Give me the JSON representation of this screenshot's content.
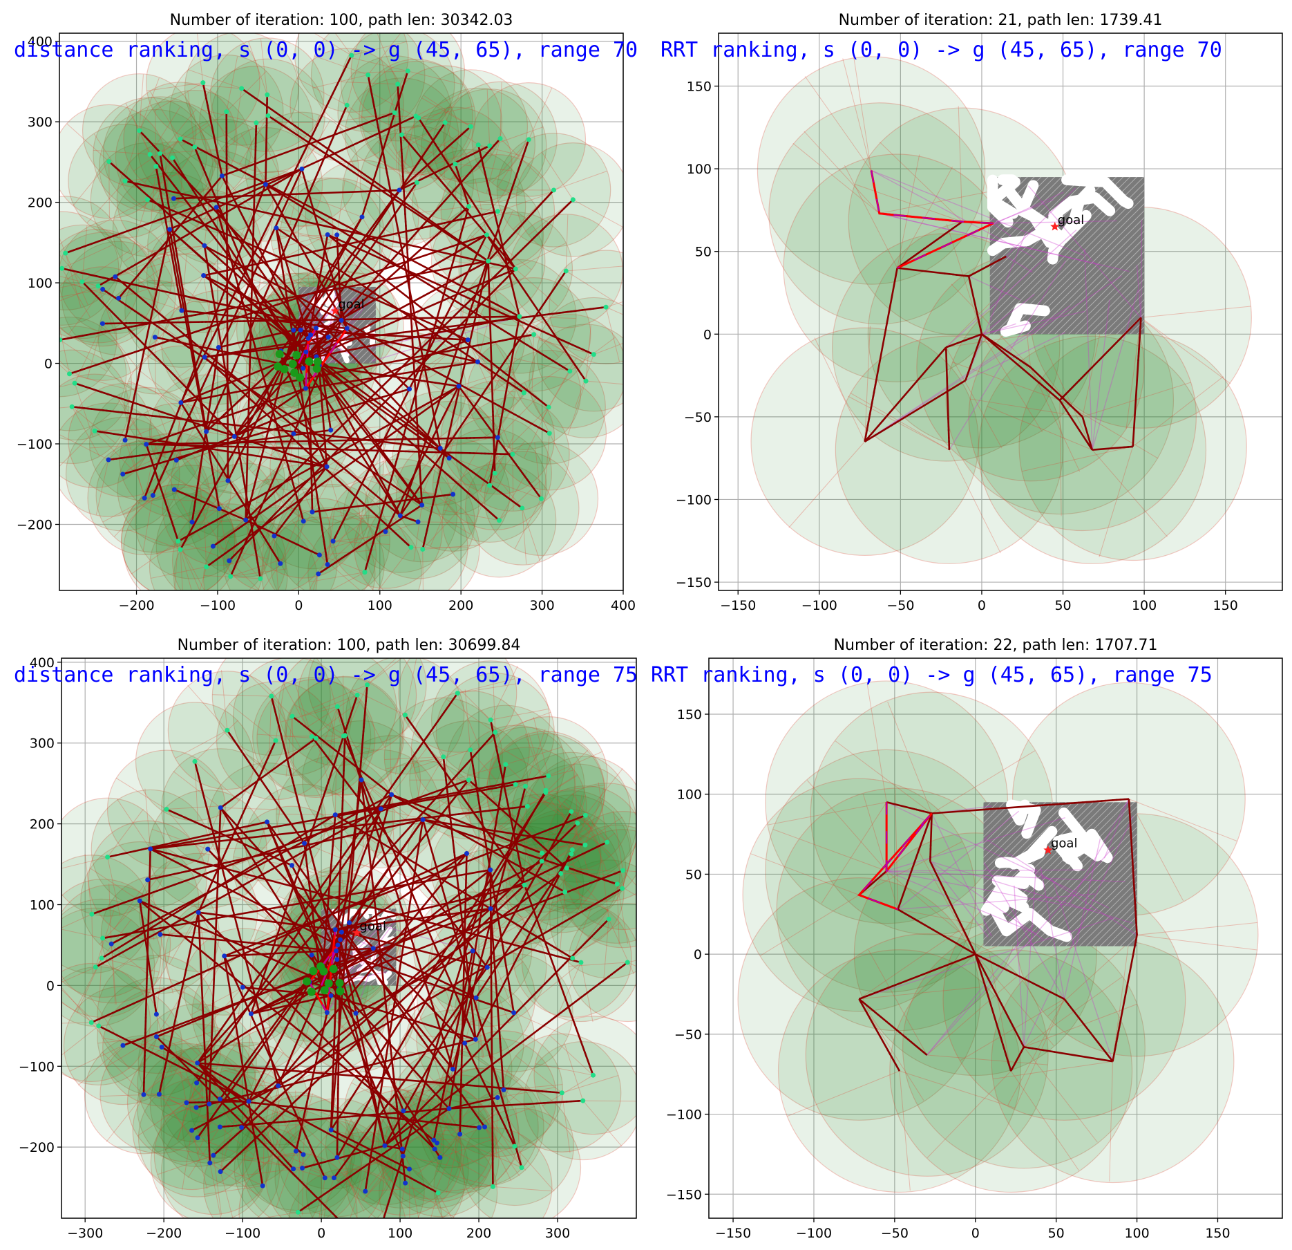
{
  "chart_data": [
    {
      "type": "scatter",
      "title": "Number of iteration: 100, path len: 30342.03",
      "annotation": "distance ranking, s (0, 0) -> g (45, 65), range 70",
      "xlim": [
        -295,
        400
      ],
      "ylim": [
        -282,
        410
      ],
      "xticks": [
        -200,
        -100,
        0,
        100,
        200,
        300,
        400
      ],
      "yticks": [
        -200,
        -100,
        0,
        100,
        200,
        300,
        400
      ],
      "grid": true,
      "start": [
        0,
        0
      ],
      "goal": [
        45,
        65
      ],
      "goal_label": "goal",
      "maze_extent": [
        0,
        95,
        0,
        95
      ],
      "tree_seed": 11,
      "tree_nodes": 150,
      "hub_radius": 50,
      "spread": 330
    },
    {
      "type": "scatter",
      "title": "Number of iteration: 21, path len: 1739.41",
      "annotation": "RRT ranking, s (0, 0) -> g (45, 65), range 70",
      "xlim": [
        -162,
        185
      ],
      "ylim": [
        -155,
        182
      ],
      "xticks": [
        -150,
        -100,
        -50,
        0,
        50,
        100,
        150
      ],
      "yticks": [
        -150,
        -100,
        -50,
        0,
        50,
        100,
        150
      ],
      "grid": true,
      "start": [
        0,
        0
      ],
      "goal": [
        45,
        65
      ],
      "goal_label": "goal",
      "maze_extent": [
        5,
        100,
        0,
        95
      ],
      "tree_nodes_xy": [
        [
          -68,
          99
        ],
        [
          -63,
          73
        ],
        [
          -12,
          68
        ],
        [
          7,
          67
        ],
        [
          -52,
          40
        ],
        [
          -8,
          35
        ],
        [
          15,
          47
        ],
        [
          0,
          0
        ],
        [
          -22,
          -8
        ],
        [
          -72,
          -65
        ],
        [
          -20,
          -70
        ],
        [
          48,
          -40
        ],
        [
          68,
          -70
        ],
        [
          93,
          -68
        ],
        [
          98,
          10
        ],
        [
          -10,
          -28
        ],
        [
          30,
          -20
        ],
        [
          62,
          -50
        ]
      ],
      "tree_edges": [
        [
          0,
          1
        ],
        [
          1,
          2
        ],
        [
          2,
          3
        ],
        [
          2,
          4
        ],
        [
          4,
          5
        ],
        [
          5,
          6
        ],
        [
          5,
          7
        ],
        [
          7,
          8
        ],
        [
          8,
          9
        ],
        [
          8,
          10
        ],
        [
          7,
          11
        ],
        [
          11,
          12
        ],
        [
          12,
          13
        ],
        [
          13,
          14
        ],
        [
          14,
          11
        ],
        [
          7,
          15
        ],
        [
          15,
          9
        ],
        [
          7,
          16
        ],
        [
          16,
          17
        ],
        [
          17,
          12
        ],
        [
          4,
          9
        ]
      ],
      "circles": [
        [
          -68,
          99,
          70
        ],
        [
          -63,
          73,
          68
        ],
        [
          -12,
          68,
          70
        ],
        [
          -52,
          40,
          70
        ],
        [
          0,
          0,
          70
        ],
        [
          -22,
          -8,
          70
        ],
        [
          -72,
          -65,
          70
        ],
        [
          -20,
          -70,
          70
        ],
        [
          48,
          -40,
          70
        ],
        [
          68,
          -70,
          70
        ],
        [
          93,
          -68,
          70
        ],
        [
          98,
          10,
          68
        ],
        [
          30,
          -20,
          70
        ],
        [
          62,
          -50,
          70
        ]
      ]
    },
    {
      "type": "scatter",
      "title": "Number of iteration: 100, path len: 30699.84",
      "annotation": "distance ranking, s (0, 0) -> g (45, 65), range 75",
      "xlim": [
        -330,
        400
      ],
      "ylim": [
        -288,
        405
      ],
      "xticks": [
        -300,
        -200,
        -100,
        0,
        100,
        200,
        300
      ],
      "yticks": [
        -200,
        -100,
        0,
        100,
        200,
        300,
        400
      ],
      "grid": true,
      "start": [
        0,
        0
      ],
      "goal": [
        45,
        65
      ],
      "goal_label": "goal",
      "maze_extent": [
        0,
        95,
        0,
        95
      ],
      "tree_seed": 23,
      "tree_nodes": 155,
      "hub_radius": 55,
      "spread": 345
    },
    {
      "type": "scatter",
      "title": "Number of iteration: 22, path len: 1707.71",
      "annotation": "RRT ranking, s (0, 0) -> g (45, 65), range 75",
      "xlim": [
        -165,
        190
      ],
      "ylim": [
        -165,
        185
      ],
      "xticks": [
        -150,
        -100,
        -50,
        0,
        50,
        100,
        150
      ],
      "yticks": [
        -150,
        -100,
        -50,
        0,
        50,
        100,
        150
      ],
      "grid": true,
      "start": [
        0,
        0
      ],
      "goal": [
        45,
        65
      ],
      "goal_label": "goal",
      "maze_extent": [
        5,
        100,
        5,
        95
      ],
      "tree_nodes_xy": [
        [
          -55,
          95
        ],
        [
          -55,
          52
        ],
        [
          -27,
          88
        ],
        [
          -72,
          37
        ],
        [
          -48,
          28
        ],
        [
          0,
          0
        ],
        [
          -72,
          -28
        ],
        [
          -47,
          -73
        ],
        [
          -30,
          -63
        ],
        [
          30,
          -58
        ],
        [
          22,
          -73
        ],
        [
          85,
          -67
        ],
        [
          100,
          12
        ],
        [
          -28,
          58
        ],
        [
          95,
          97
        ],
        [
          55,
          -28
        ]
      ],
      "tree_edges": [
        [
          0,
          1
        ],
        [
          0,
          2
        ],
        [
          2,
          14
        ],
        [
          14,
          12
        ],
        [
          12,
          11
        ],
        [
          11,
          9
        ],
        [
          9,
          5
        ],
        [
          5,
          4
        ],
        [
          4,
          3
        ],
        [
          3,
          1
        ],
        [
          5,
          6
        ],
        [
          6,
          7
        ],
        [
          6,
          8
        ],
        [
          5,
          10
        ],
        [
          10,
          9
        ],
        [
          2,
          13
        ],
        [
          13,
          5
        ],
        [
          5,
          15
        ],
        [
          15,
          11
        ],
        [
          4,
          2
        ]
      ],
      "circles": [
        [
          -55,
          95,
          75
        ],
        [
          -55,
          52,
          75
        ],
        [
          -27,
          88,
          75
        ],
        [
          -72,
          37,
          72
        ],
        [
          -48,
          28,
          75
        ],
        [
          0,
          0,
          75
        ],
        [
          -72,
          -28,
          75
        ],
        [
          -47,
          -73,
          75
        ],
        [
          -30,
          -63,
          75
        ],
        [
          30,
          -58,
          75
        ],
        [
          22,
          -73,
          75
        ],
        [
          85,
          -67,
          75
        ],
        [
          100,
          12,
          75
        ],
        [
          95,
          97,
          72
        ],
        [
          55,
          -28,
          75
        ]
      ]
    }
  ]
}
